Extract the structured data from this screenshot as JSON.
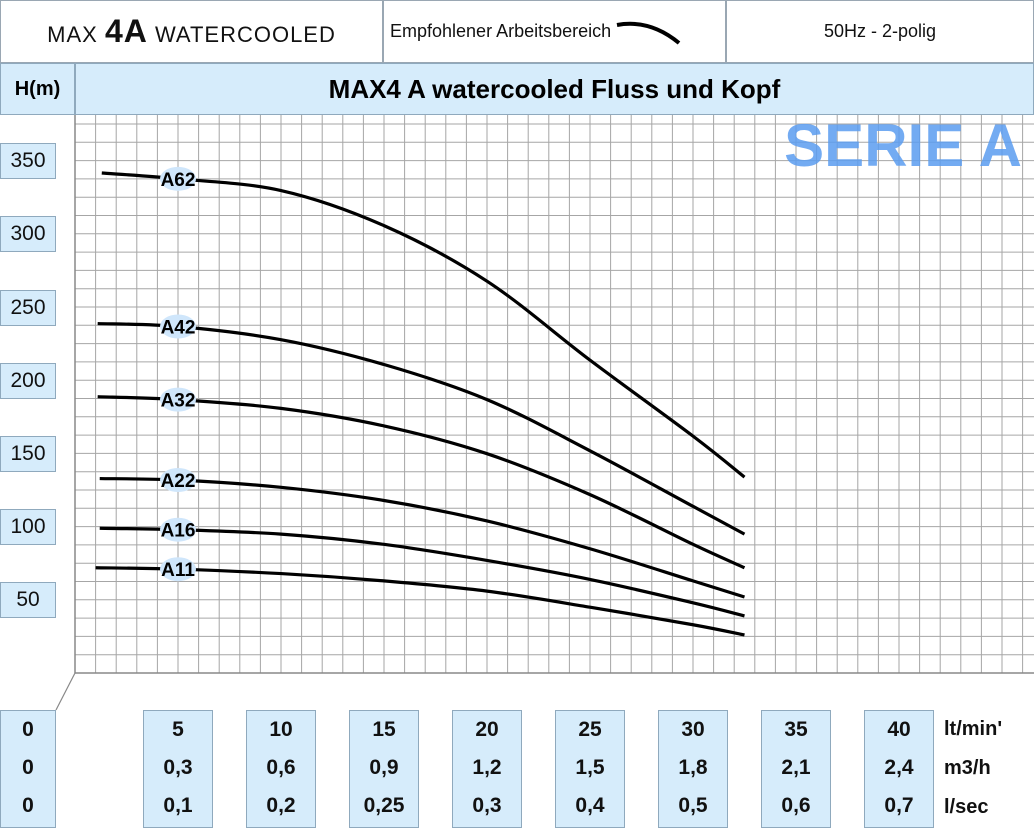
{
  "header": {
    "model_prefix": "MAX",
    "model_big": "4A",
    "model_suffix": "WATERCOOLED",
    "working_range_label": "Empfohlener Arbeitsbereich",
    "frequency": "50Hz - 2-polig"
  },
  "axis_corner_label": "H(m)",
  "watermark": "SERIE A",
  "units": {
    "row1": "lt/min'",
    "row2": "m3/h",
    "row3": "l/sec"
  },
  "x_origin": [
    "0",
    "0",
    "0"
  ],
  "x_columns": [
    {
      "lpm": "5",
      "m3h": "0,3",
      "lsec": "0,1"
    },
    {
      "lpm": "10",
      "m3h": "0,6",
      "lsec": "0,2"
    },
    {
      "lpm": "15",
      "m3h": "0,9",
      "lsec": "0,25"
    },
    {
      "lpm": "20",
      "m3h": "1,2",
      "lsec": "0,3"
    },
    {
      "lpm": "25",
      "m3h": "1,5",
      "lsec": "0,4"
    },
    {
      "lpm": "30",
      "m3h": "1,8",
      "lsec": "0,5"
    },
    {
      "lpm": "35",
      "m3h": "2,1",
      "lsec": "0,6"
    },
    {
      "lpm": "40",
      "m3h": "2,4",
      "lsec": "0,7"
    }
  ],
  "chart_data": {
    "type": "line",
    "title": "MAX4 A watercooled Fluss und Kopf",
    "xlabel": "",
    "ylabel": "H(m)",
    "xlim": [
      0,
      45
    ],
    "ylim": [
      0,
      380
    ],
    "yticks": [
      50,
      100,
      150,
      200,
      250,
      300,
      350
    ],
    "grid": true,
    "legend": "inline",
    "series": [
      {
        "name": "A62",
        "label_x": 5,
        "x": [
          1.3,
          5,
          10,
          15,
          20,
          25,
          30,
          32.5
        ],
        "y": [
          342,
          338,
          330,
          306,
          268,
          214,
          162,
          134
        ]
      },
      {
        "name": "A42",
        "label_x": 5,
        "x": [
          1.1,
          5,
          10,
          15,
          20,
          25,
          30,
          32.5
        ],
        "y": [
          239,
          237,
          228,
          211,
          187,
          152,
          114,
          95
        ]
      },
      {
        "name": "A32",
        "label_x": 5,
        "x": [
          1.1,
          5,
          10,
          15,
          20,
          25,
          30,
          32.5
        ],
        "y": [
          189,
          187,
          181,
          169,
          150,
          122,
          88,
          72
        ]
      },
      {
        "name": "A22",
        "label_x": 5,
        "x": [
          1.2,
          5,
          10,
          15,
          20,
          25,
          30,
          32.5
        ],
        "y": [
          133,
          132,
          127,
          118,
          104,
          85,
          63,
          52
        ]
      },
      {
        "name": "A16",
        "label_x": 5,
        "x": [
          1.2,
          5,
          10,
          15,
          20,
          25,
          30,
          32.5
        ],
        "y": [
          99,
          98,
          95,
          88,
          77,
          64,
          48,
          39
        ]
      },
      {
        "name": "A11",
        "label_x": 5,
        "x": [
          1.0,
          5,
          10,
          15,
          20,
          25,
          30,
          32.5
        ],
        "y": [
          72,
          71,
          68,
          63,
          56,
          45,
          33,
          26
        ]
      }
    ]
  }
}
